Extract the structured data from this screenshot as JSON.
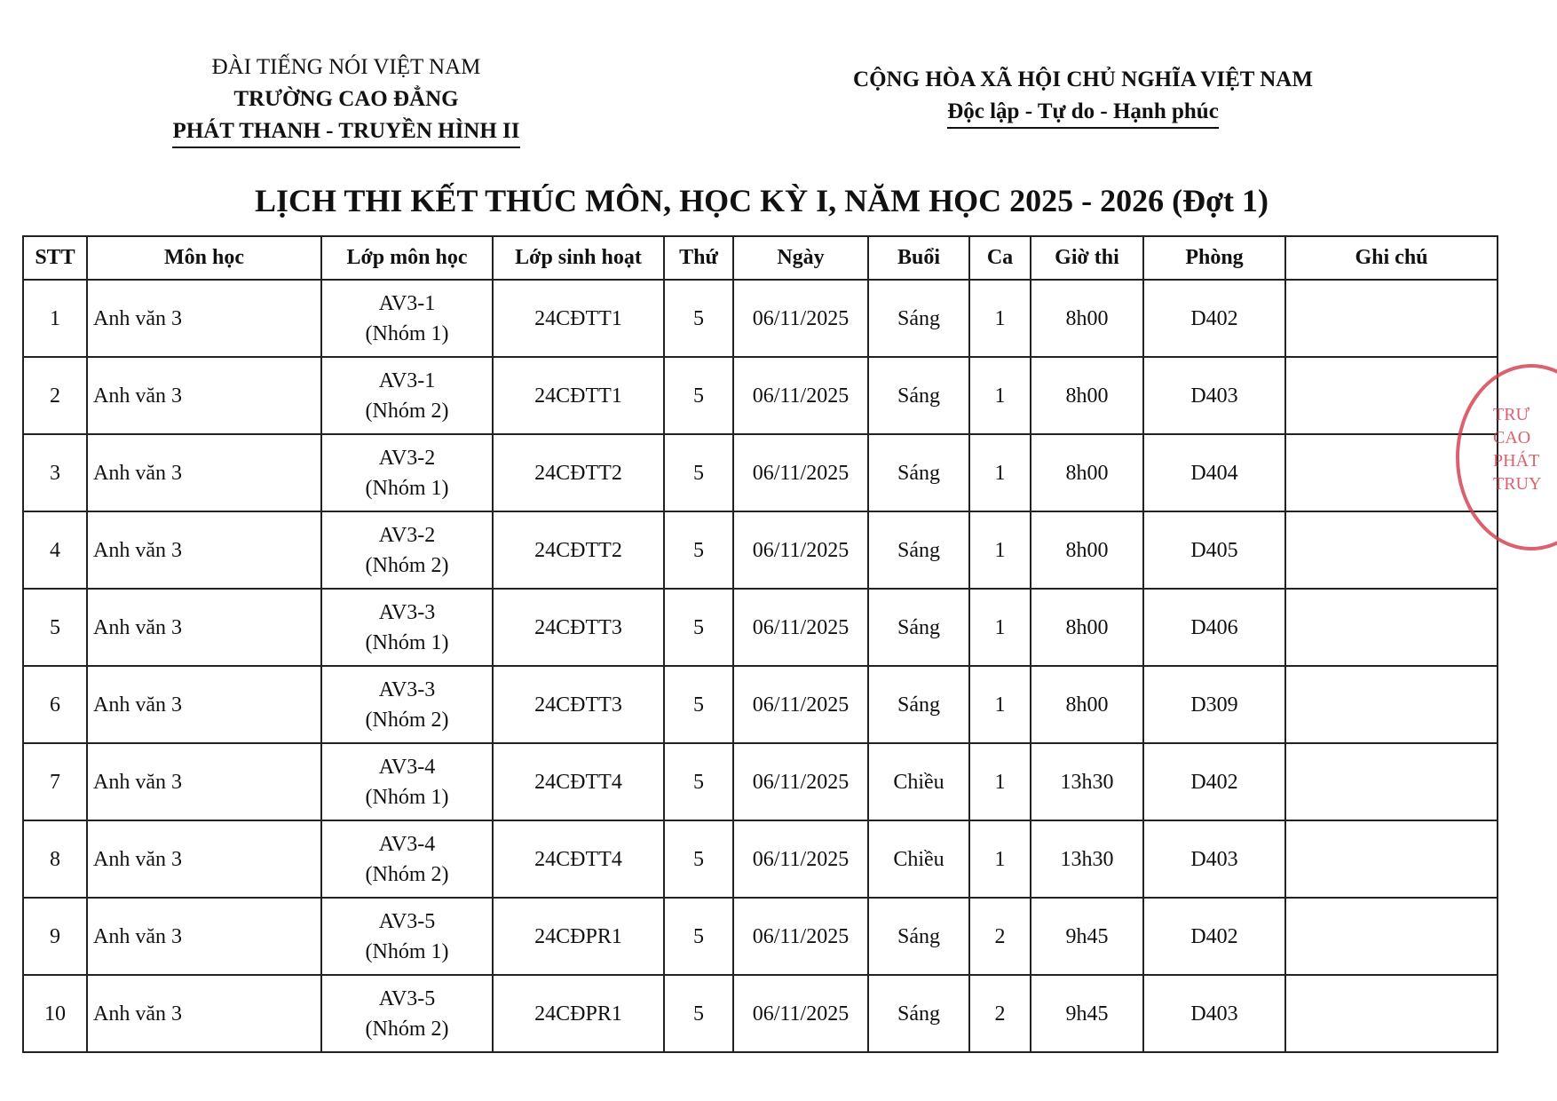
{
  "header": {
    "left": [
      "ĐÀI TIẾNG NÓI VIỆT NAM",
      "TRƯỜNG CAO ĐẲNG",
      "PHÁT THANH - TRUYỀN HÌNH II"
    ],
    "right": [
      "CỘNG HÒA XÃ HỘI CHỦ NGHĨA VIỆT NAM",
      "Độc lập - Tự do - Hạnh phúc"
    ]
  },
  "title": "LỊCH THI KẾT THÚC MÔN, HỌC KỲ I, NĂM HỌC 2025 - 2026 (Đợt 1)",
  "table": {
    "columns": [
      "STT",
      "Môn học",
      "Lớp môn học",
      "Lớp sinh hoạt",
      "Thứ",
      "Ngày",
      "Buổi",
      "Ca",
      "Giờ thi",
      "Phòng",
      "Ghi chú"
    ],
    "rows": [
      [
        "1",
        "Anh văn 3",
        [
          "AV3-1",
          "(Nhóm 1)"
        ],
        "24CĐTT1",
        "5",
        "06/11/2025",
        "Sáng",
        "1",
        "8h00",
        "D402"
      ],
      [
        "2",
        "Anh văn 3",
        [
          "AV3-1",
          "(Nhóm 2)"
        ],
        "24CĐTT1",
        "5",
        "06/11/2025",
        "Sáng",
        "1",
        "8h00",
        "D403"
      ],
      [
        "3",
        "Anh văn 3",
        [
          "AV3-2",
          "(Nhóm 1)"
        ],
        "24CĐTT2",
        "5",
        "06/11/2025",
        "Sáng",
        "1",
        "8h00",
        "D404"
      ],
      [
        "4",
        "Anh văn 3",
        [
          "AV3-2",
          "(Nhóm 2)"
        ],
        "24CĐTT2",
        "5",
        "06/11/2025",
        "Sáng",
        "1",
        "8h00",
        "D405"
      ],
      [
        "5",
        "Anh văn 3",
        [
          "AV3-3",
          "(Nhóm 1)"
        ],
        "24CĐTT3",
        "5",
        "06/11/2025",
        "Sáng",
        "1",
        "8h00",
        "D406"
      ],
      [
        "6",
        "Anh văn 3",
        [
          "AV3-3",
          "(Nhóm 2)"
        ],
        "24CĐTT3",
        "5",
        "06/11/2025",
        "Sáng",
        "1",
        "8h00",
        "D309"
      ],
      [
        "7",
        "Anh văn 3",
        [
          "AV3-4",
          "(Nhóm 1)"
        ],
        "24CĐTT4",
        "5",
        "06/11/2025",
        "Chiều",
        "1",
        "13h30",
        "D402"
      ],
      [
        "8",
        "Anh văn 3",
        [
          "AV3-4",
          "(Nhóm 2)"
        ],
        "24CĐTT4",
        "5",
        "06/11/2025",
        "Chiều",
        "1",
        "13h30",
        "D403"
      ],
      [
        "9",
        "Anh văn 3",
        [
          "AV3-5",
          "(Nhóm 1)"
        ],
        "24CĐPR1",
        "5",
        "06/11/2025",
        "Sáng",
        "2",
        "9h45",
        "D402"
      ],
      [
        "10",
        "Anh văn 3",
        [
          "AV3-5",
          "(Nhóm 2)"
        ],
        "24CĐPR1",
        "5",
        "06/11/2025",
        "Sáng",
        "2",
        "9h45",
        "D403"
      ]
    ]
  },
  "stamp": [
    "TRƯ",
    "CAO",
    "PHÁT",
    "TRUY"
  ]
}
